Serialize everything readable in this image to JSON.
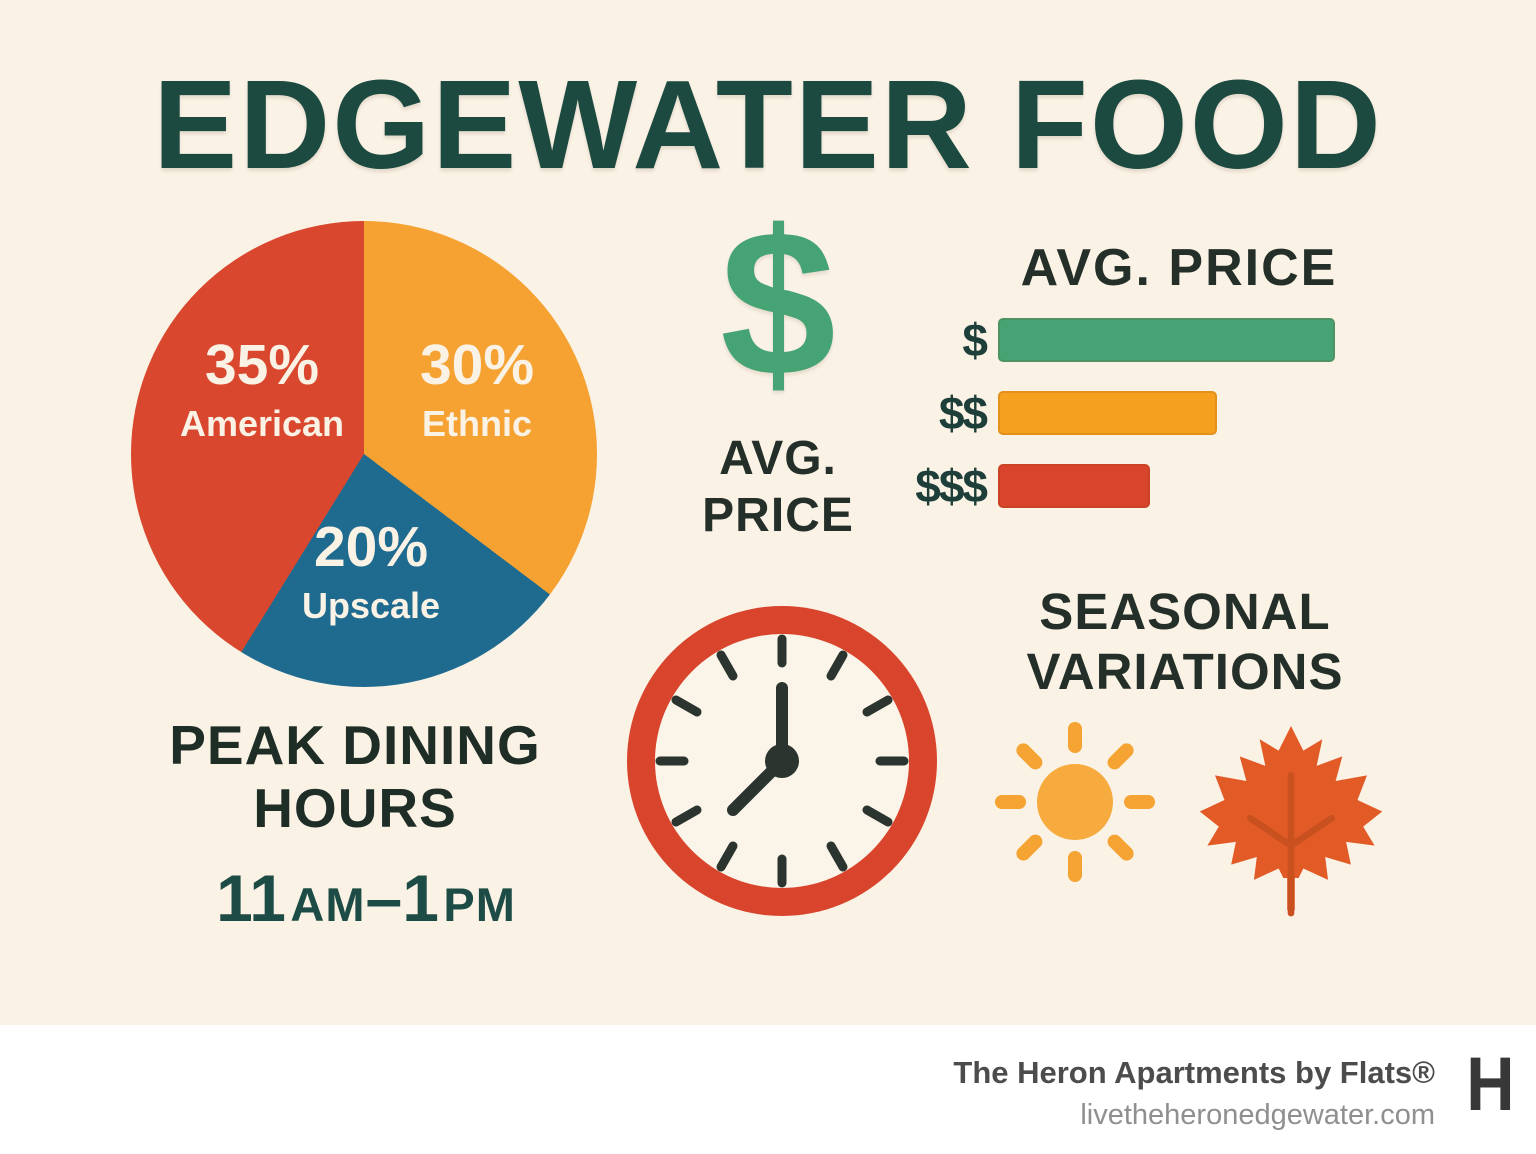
{
  "page": {
    "title": "EDGEWATER FOOD"
  },
  "chart_data": [
    {
      "type": "pie",
      "name": "restaurant-cuisine-share",
      "slices": [
        {
          "label": "American",
          "pct_label": "35%",
          "value": 35,
          "color": "#d9472e"
        },
        {
          "label": "Ethnic",
          "pct_label": "30%",
          "value": 30,
          "color": "#f5a233"
        },
        {
          "label": "Upscale",
          "pct_label": "20%",
          "value": 20,
          "color": "#1f6b90"
        }
      ],
      "render_order_clockwise_from_top": [
        1,
        2,
        0
      ],
      "legend_position": "inside-slices"
    },
    {
      "type": "bar",
      "name": "avg-price-tiers",
      "title": "AVG. PRICE",
      "orientation": "horizontal",
      "categories": [
        "$",
        "$$",
        "$$$"
      ],
      "values_pct_of_max": [
        100,
        65,
        45
      ],
      "colors": [
        "#46a474",
        "#f5a01f",
        "#d9452c"
      ]
    }
  ],
  "price_block": {
    "dollar_symbol": "$",
    "caption_line1": "AVG.",
    "caption_line2": "PRICE"
  },
  "peak_dining": {
    "heading_line1": "PEAK DINING",
    "heading_line2": "HOURS",
    "time_range": {
      "full": "11 AM–1 PM",
      "start_value": "11",
      "start_period": "AM",
      "separator": "–",
      "end_value": "1",
      "end_period": "PM"
    }
  },
  "seasonal": {
    "heading_line1": "SEASONAL",
    "heading_line2": "VARIATIONS"
  },
  "clock": {
    "shows": "hands at 12 and lower-left (~7:30 direction)"
  },
  "footer": {
    "brand": "The Heron Apartments by Flats®",
    "website": "livetheheronedgewater.com",
    "logo_letter": "H"
  },
  "colors": {
    "background": "#faf2e5",
    "footer_background": "#ffffff",
    "title_teal": "#1c4a41",
    "dark_text": "#242f29",
    "time_teal": "#1d4b45",
    "price_label_teal": "#1d3e39",
    "dollar_green": "#46a474",
    "clock_red": "#d9452c",
    "clock_marks": "#2b342e",
    "sun_yellow": "#f6a93c",
    "leaf_orange": "#e25b27",
    "leaf_vein": "#c9511f",
    "pie_label_text": "#faf2e5"
  }
}
